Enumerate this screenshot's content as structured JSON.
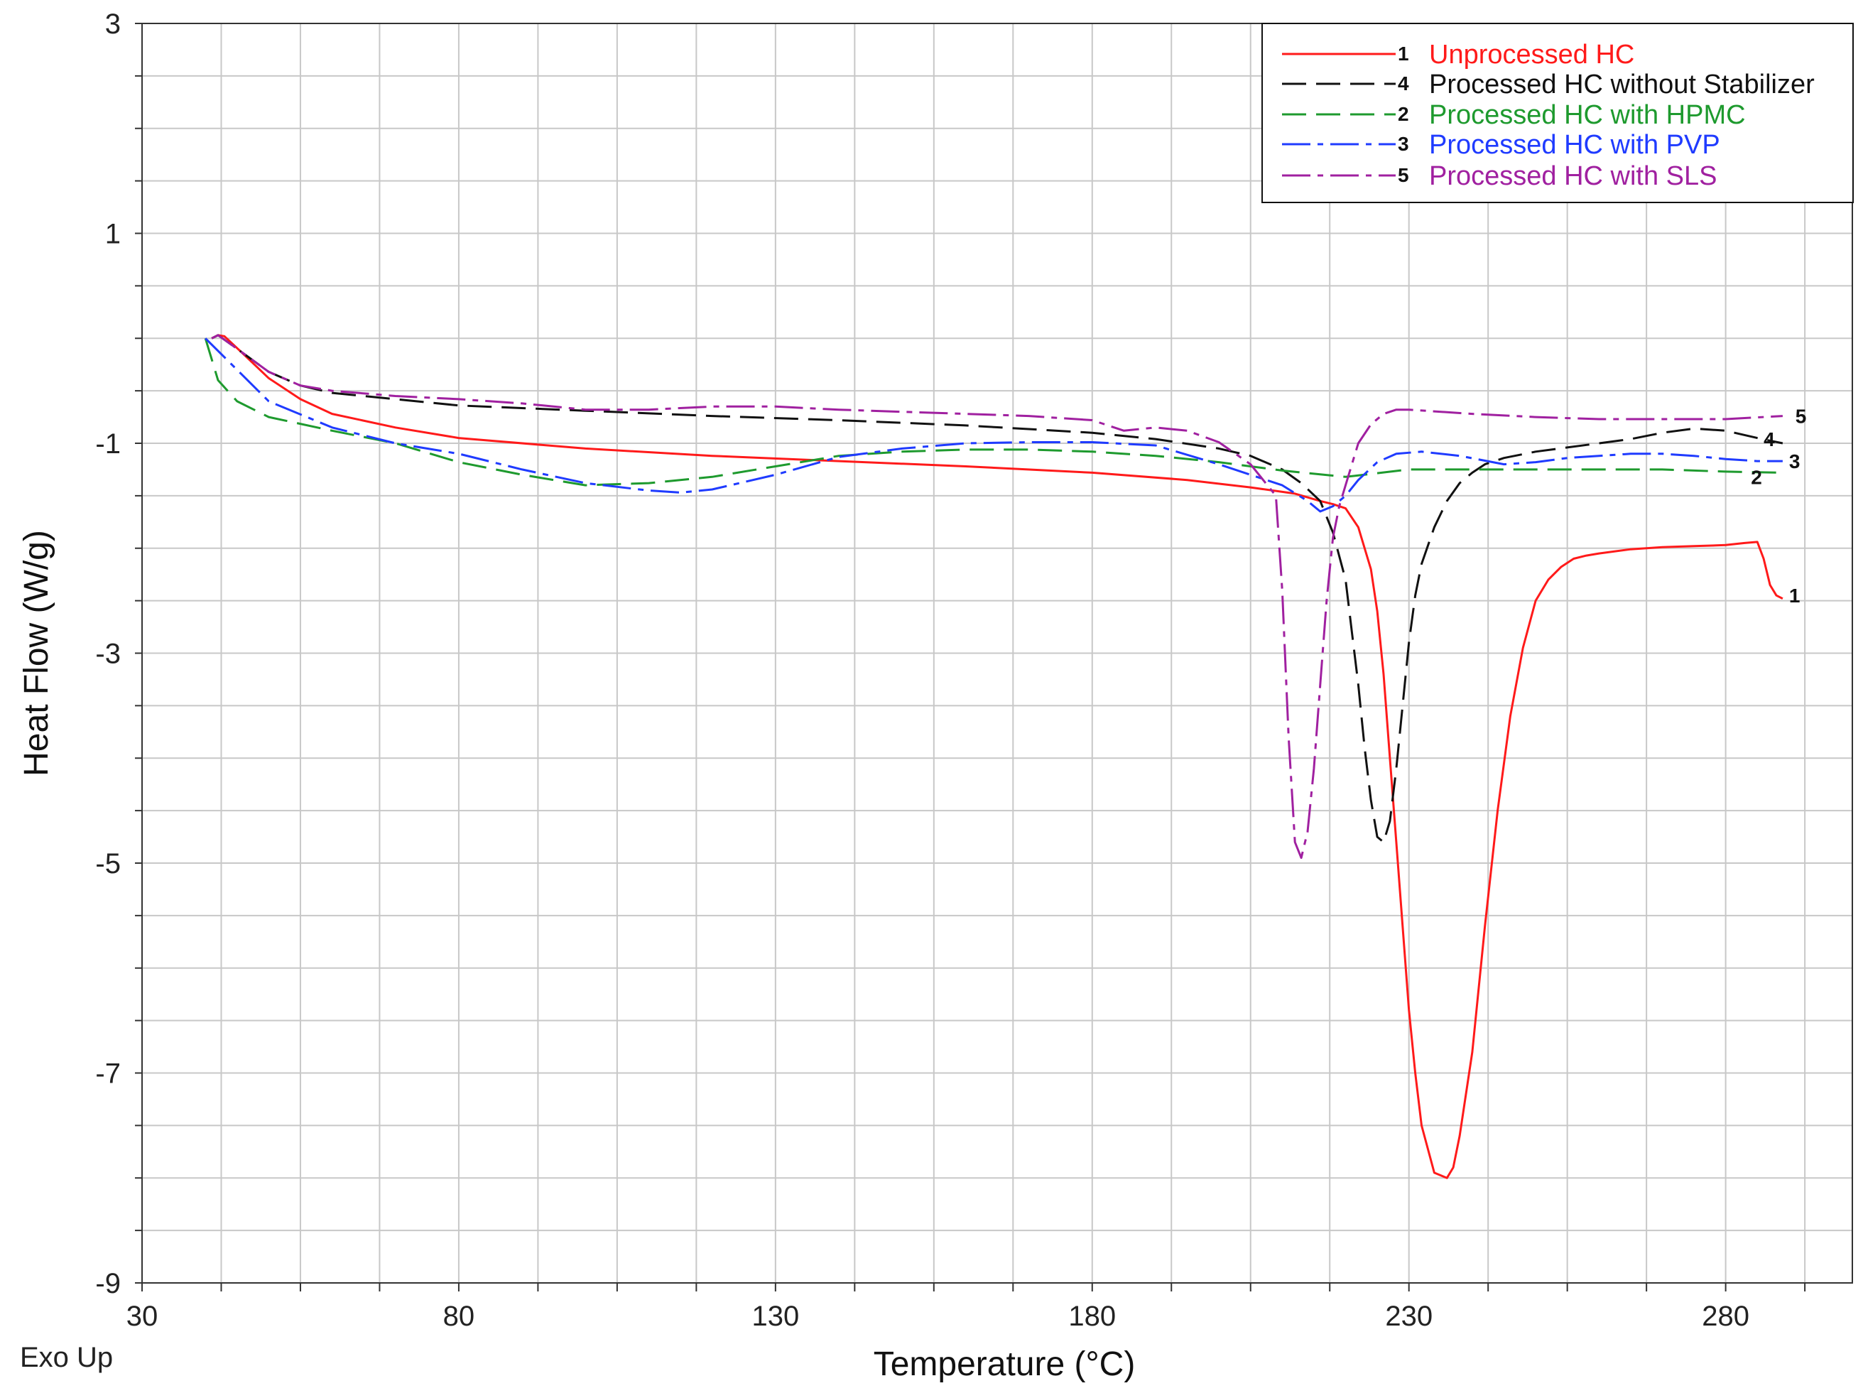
{
  "chart_data": {
    "type": "line",
    "xlabel": "Temperature (°C)",
    "ylabel": "Heat Flow (W/g)",
    "corner_note": "Exo Up",
    "xlim": [
      30,
      300
    ],
    "ylim": [
      -9,
      3
    ],
    "x_ticks": [
      30,
      80,
      130,
      180,
      230,
      280
    ],
    "y_ticks": [
      3,
      1,
      -1,
      -3,
      -5,
      -7,
      -9
    ],
    "grid": true,
    "legend_position": "top-right",
    "series": [
      {
        "name": "Unprocessed HC",
        "label": "1",
        "color": "#ff1a1a",
        "dash": "solid",
        "x": [
          41,
          42,
          43,
          46,
          50,
          55,
          60,
          70,
          80,
          100,
          120,
          140,
          160,
          180,
          195,
          205,
          212,
          216,
          218,
          220,
          222,
          224,
          225,
          226,
          227,
          228,
          229,
          230,
          231,
          232,
          234,
          236,
          237,
          238,
          240,
          242,
          244,
          246,
          248,
          250,
          252,
          254,
          256,
          258,
          260,
          265,
          270,
          275,
          280,
          283,
          285,
          286,
          287,
          288,
          289
        ],
        "y": [
          0,
          0.03,
          0.02,
          -0.15,
          -0.38,
          -0.58,
          -0.72,
          -0.85,
          -0.95,
          -1.05,
          -1.12,
          -1.17,
          -1.22,
          -1.28,
          -1.35,
          -1.42,
          -1.48,
          -1.55,
          -1.58,
          -1.62,
          -1.8,
          -2.2,
          -2.6,
          -3.2,
          -4.0,
          -4.8,
          -5.6,
          -6.4,
          -7.0,
          -7.5,
          -7.95,
          -8.0,
          -7.9,
          -7.6,
          -6.8,
          -5.6,
          -4.5,
          -3.6,
          -2.95,
          -2.5,
          -2.3,
          -2.18,
          -2.1,
          -2.07,
          -2.05,
          -2.01,
          -1.99,
          -1.98,
          -1.97,
          -1.95,
          -1.94,
          -2.1,
          -2.35,
          -2.45,
          -2.48
        ]
      },
      {
        "name": "Processed HC without Stabilizer",
        "label": "4",
        "color": "#111111",
        "dash": "longdash",
        "x": [
          41,
          42,
          45,
          50,
          55,
          60,
          70,
          80,
          100,
          120,
          140,
          160,
          180,
          190,
          200,
          205,
          210,
          213,
          216,
          218,
          220,
          221,
          222,
          223,
          224,
          225,
          226,
          227,
          228,
          229,
          230,
          231,
          232,
          234,
          236,
          238,
          240,
          242,
          245,
          250,
          255,
          260,
          265,
          270,
          275,
          280,
          285,
          289
        ],
        "y": [
          0,
          0.03,
          -0.1,
          -0.32,
          -0.45,
          -0.52,
          -0.58,
          -0.64,
          -0.69,
          -0.74,
          -0.78,
          -0.83,
          -0.9,
          -0.96,
          -1.05,
          -1.12,
          -1.25,
          -1.38,
          -1.55,
          -1.85,
          -2.3,
          -2.8,
          -3.3,
          -3.9,
          -4.4,
          -4.75,
          -4.8,
          -4.6,
          -4.1,
          -3.5,
          -2.9,
          -2.45,
          -2.15,
          -1.8,
          -1.55,
          -1.38,
          -1.28,
          -1.2,
          -1.14,
          -1.08,
          -1.04,
          -1.0,
          -0.96,
          -0.9,
          -0.86,
          -0.88,
          -0.95,
          -1.0
        ]
      },
      {
        "name": "Processed HC with HPMC",
        "label": "2",
        "color": "#1e9a2e",
        "dash": "longdash",
        "x": [
          40,
          42,
          45,
          50,
          60,
          70,
          80,
          90,
          100,
          110,
          120,
          130,
          140,
          150,
          160,
          170,
          180,
          190,
          200,
          210,
          220,
          230,
          240,
          250,
          260,
          270,
          280,
          289
        ],
        "y": [
          0,
          -0.4,
          -0.6,
          -0.75,
          -0.88,
          -1.0,
          -1.18,
          -1.3,
          -1.4,
          -1.38,
          -1.32,
          -1.22,
          -1.12,
          -1.08,
          -1.06,
          -1.06,
          -1.08,
          -1.12,
          -1.18,
          -1.26,
          -1.32,
          -1.25,
          -1.25,
          -1.25,
          -1.25,
          -1.25,
          -1.27,
          -1.28
        ]
      },
      {
        "name": "Processed HC with PVP",
        "label": "3",
        "color": "#1f3bff",
        "dash": "dashdot",
        "x": [
          40,
          45,
          50,
          60,
          70,
          80,
          90,
          100,
          110,
          115,
          120,
          130,
          140,
          150,
          160,
          170,
          180,
          190,
          200,
          210,
          214,
          216,
          218,
          220,
          222,
          225,
          228,
          232,
          238,
          245,
          250,
          255,
          260,
          265,
          270,
          275,
          280,
          285,
          289
        ],
        "y": [
          0,
          -0.3,
          -0.6,
          -0.85,
          -1.0,
          -1.1,
          -1.25,
          -1.38,
          -1.45,
          -1.47,
          -1.44,
          -1.3,
          -1.13,
          -1.05,
          -1.0,
          -0.99,
          -0.99,
          -1.02,
          -1.2,
          -1.4,
          -1.55,
          -1.65,
          -1.6,
          -1.5,
          -1.35,
          -1.18,
          -1.1,
          -1.08,
          -1.12,
          -1.2,
          -1.18,
          -1.14,
          -1.12,
          -1.1,
          -1.1,
          -1.12,
          -1.15,
          -1.17,
          -1.17
        ]
      },
      {
        "name": "Processed HC with SLS",
        "label": "5",
        "color": "#a020a0",
        "dash": "dashdot",
        "x": [
          41,
          42,
          45,
          50,
          55,
          60,
          70,
          80,
          90,
          100,
          110,
          120,
          130,
          140,
          150,
          160,
          170,
          180,
          185,
          190,
          195,
          200,
          205,
          209,
          210,
          211,
          212,
          213,
          214,
          215,
          216,
          217,
          218,
          219,
          220,
          221,
          222,
          224,
          226,
          228,
          230,
          240,
          250,
          260,
          270,
          280,
          289
        ],
        "y": [
          0,
          0.03,
          -0.1,
          -0.32,
          -0.45,
          -0.5,
          -0.55,
          -0.58,
          -0.62,
          -0.68,
          -0.68,
          -0.65,
          -0.65,
          -0.68,
          -0.7,
          -0.72,
          -0.74,
          -0.78,
          -0.88,
          -0.85,
          -0.88,
          -0.99,
          -1.2,
          -1.5,
          -2.4,
          -3.8,
          -4.8,
          -4.95,
          -4.7,
          -4.1,
          -3.3,
          -2.5,
          -1.9,
          -1.6,
          -1.4,
          -1.2,
          -1.0,
          -0.82,
          -0.72,
          -0.68,
          -0.68,
          -0.72,
          -0.75,
          -0.77,
          -0.77,
          -0.77,
          -0.74
        ]
      }
    ],
    "curve_label_positions": {
      "1": {
        "x": 290,
        "y": -2.45
      },
      "4": {
        "x": 286,
        "y": -0.96
      },
      "2": {
        "x": 284,
        "y": -1.32
      },
      "3": {
        "x": 290,
        "y": -1.17
      },
      "5": {
        "x": 291,
        "y": -0.74
      }
    }
  }
}
